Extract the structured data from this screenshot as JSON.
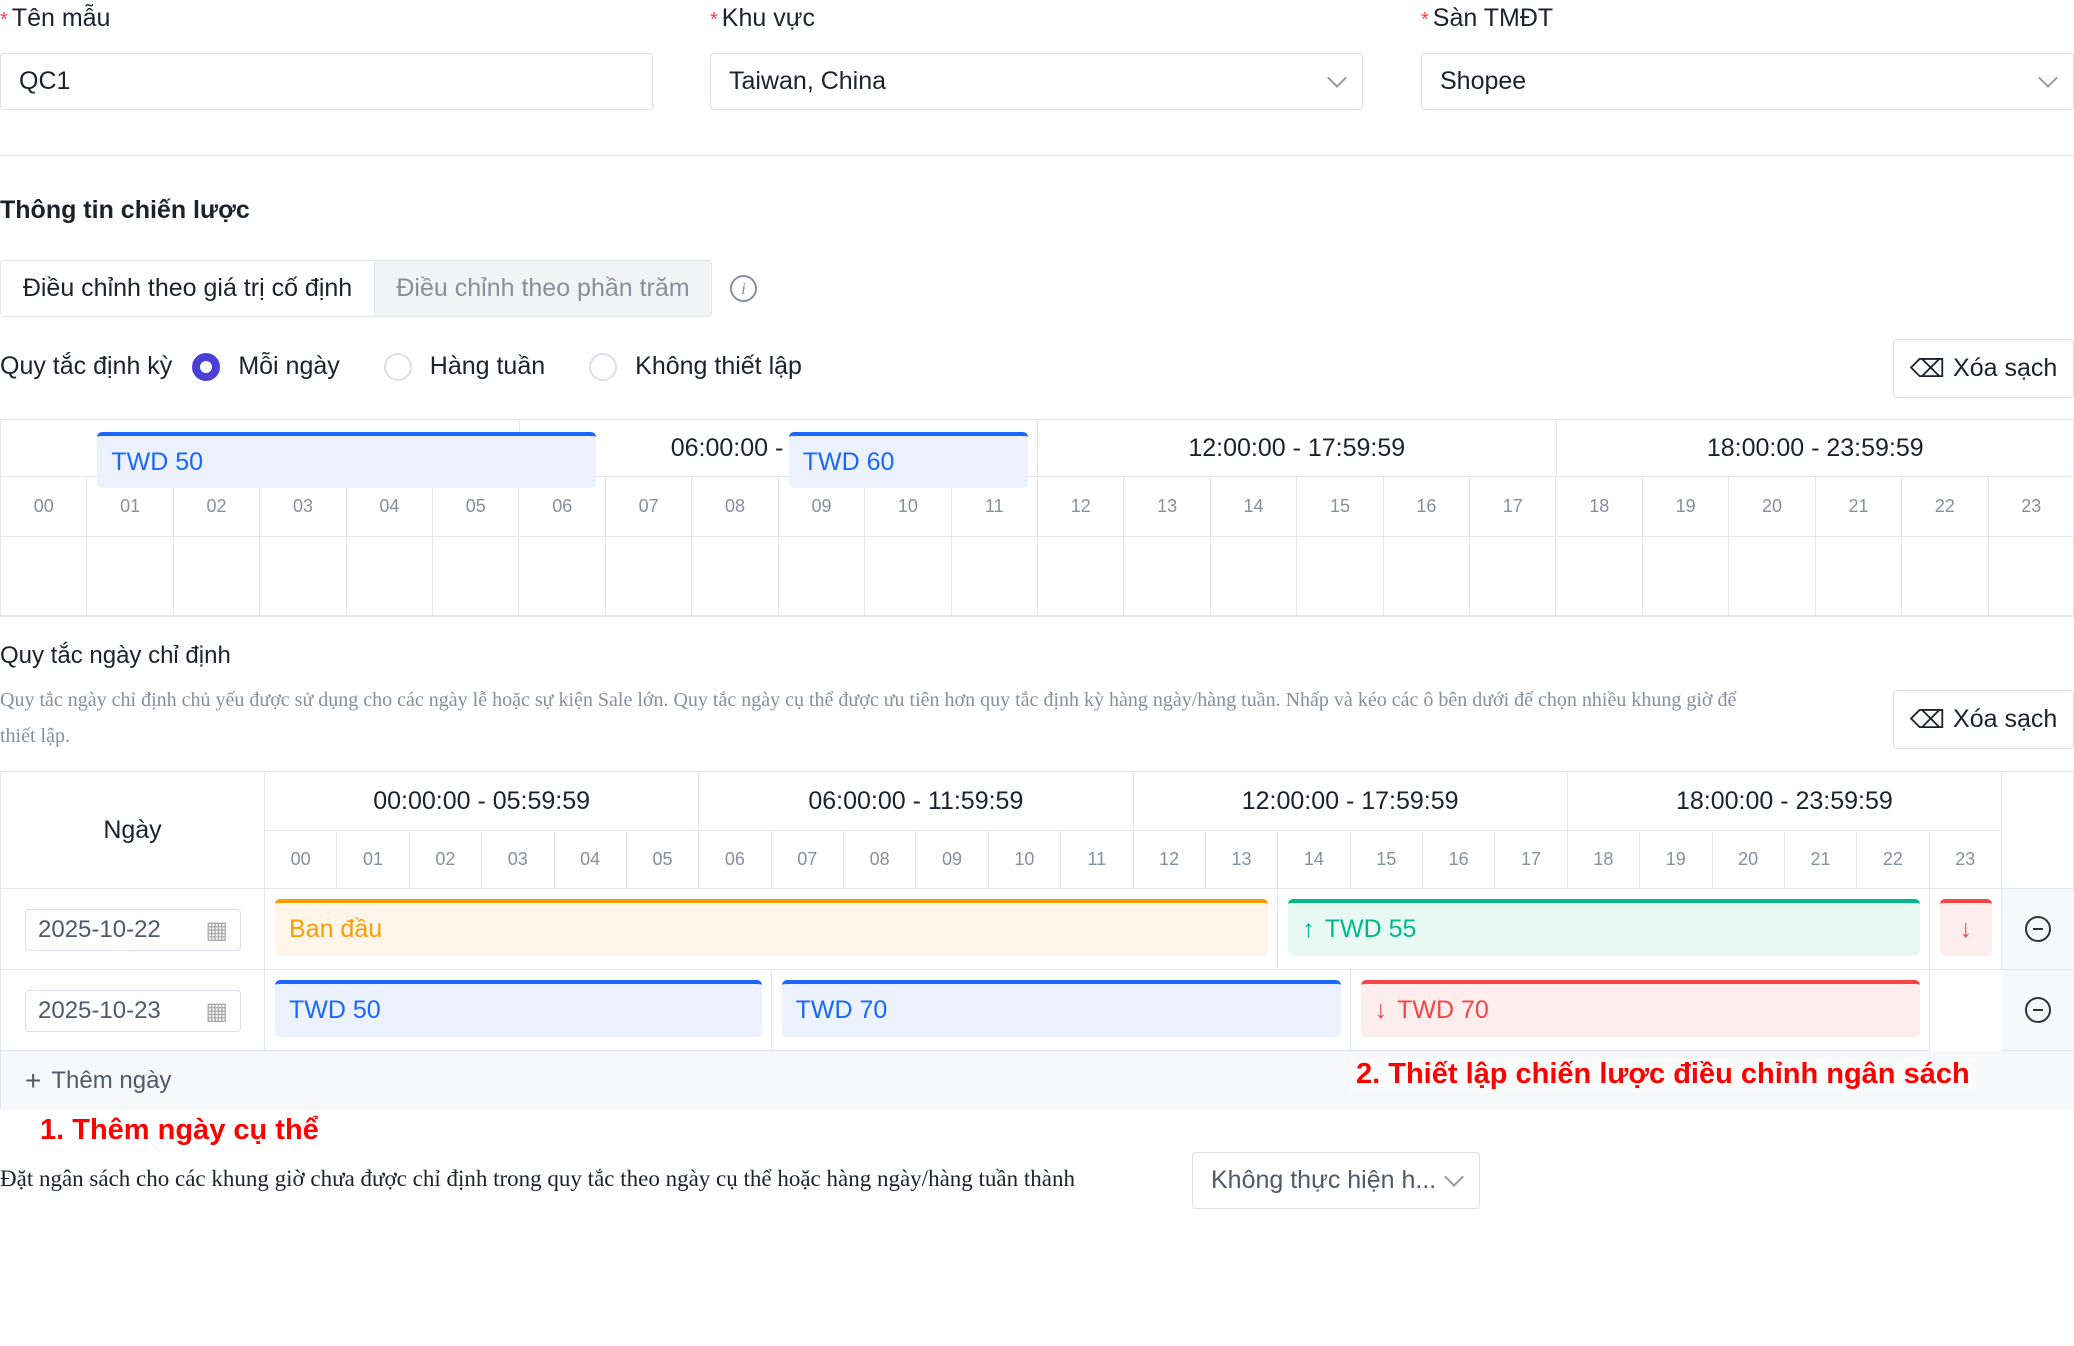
{
  "form": {
    "name": {
      "label": "Tên mẫu",
      "value": "QC1"
    },
    "region": {
      "label": "Khu vực",
      "value": "Taiwan, China"
    },
    "platform": {
      "label": "Sàn TMĐT",
      "value": "Shopee"
    }
  },
  "strategy": {
    "title": "Thông tin chiến lược",
    "tabs": [
      {
        "label": "Điều chỉnh theo giá trị cố định",
        "active": true
      },
      {
        "label": "Điều chỉnh theo phần trăm",
        "active": false
      }
    ],
    "periodic_label": "Quy tắc định kỳ",
    "radios": [
      {
        "label": "Mỗi ngày",
        "checked": true
      },
      {
        "label": "Hàng tuần",
        "checked": false
      },
      {
        "label": "Không thiết lập",
        "checked": false
      }
    ],
    "clear_label": "Xóa sạch",
    "periods": [
      "00:00:00 - 05:59:59",
      "06:00:00 - 11:59:59",
      "12:00:00 - 17:59:59",
      "18:00:00 - 23:59:59"
    ],
    "hours": [
      "00",
      "01",
      "02",
      "03",
      "04",
      "05",
      "06",
      "07",
      "08",
      "09",
      "10",
      "11",
      "12",
      "13",
      "14",
      "15",
      "16",
      "17",
      "18",
      "19",
      "20",
      "21",
      "22",
      "23"
    ],
    "periodic_bars": [
      {
        "label": "TWD 50",
        "start": 1,
        "end": 6,
        "kind": "blue"
      },
      {
        "label": "TWD 60",
        "start": 9,
        "end": 11,
        "kind": "blue"
      }
    ]
  },
  "specific": {
    "title": "Quy tắc ngày chỉ định",
    "desc1": "Quy tắc ngày chỉ định chủ yếu được sử dụng cho các ngày lễ hoặc sự kiện Sale lớn. Quy tắc ngày cụ thể được ưu tiên hơn quy tắc định kỳ hàng ngày/hàng tuần. Nhấp và kéo các ô bên dưới để chọn nhiều khung giờ để",
    "desc2": "thiết lập.",
    "clear_label": "Xóa sạch",
    "day_header": "Ngày",
    "rows": [
      {
        "date": "2025-10-22",
        "bars": [
          {
            "label": "Ban đầu",
            "start": 0,
            "end": 13,
            "kind": "orange"
          },
          {
            "label": "TWD 55",
            "start": 14,
            "end": 22,
            "kind": "green"
          },
          {
            "label": "",
            "start": 23,
            "end": 23,
            "kind": "red"
          }
        ]
      },
      {
        "date": "2025-10-23",
        "bars": [
          {
            "label": "TWD 50",
            "start": 0,
            "end": 6,
            "kind": "blue"
          },
          {
            "label": "TWD 70",
            "start": 7,
            "end": 14,
            "kind": "blue"
          },
          {
            "label": "TWD 70",
            "start": 15,
            "end": 22,
            "kind": "red"
          }
        ]
      }
    ],
    "add_day": "Thêm ngày"
  },
  "annotations": {
    "a1": "1. Thêm ngày cụ thể",
    "a2": "2. Thiết lập chiến lược điều chỉnh ngân sách"
  },
  "fallback": {
    "label": "Đặt ngân sách cho các khung giờ chưa được chỉ định trong quy tắc theo ngày cụ thể hoặc hàng ngày/hàng tuần thành",
    "value": "Không thực hiện h..."
  },
  "colors": {
    "blue": "#1a66ff",
    "orange": "#ff9c00",
    "green": "#00b98a",
    "red": "#f54545",
    "accent": "#4c3fd6"
  }
}
